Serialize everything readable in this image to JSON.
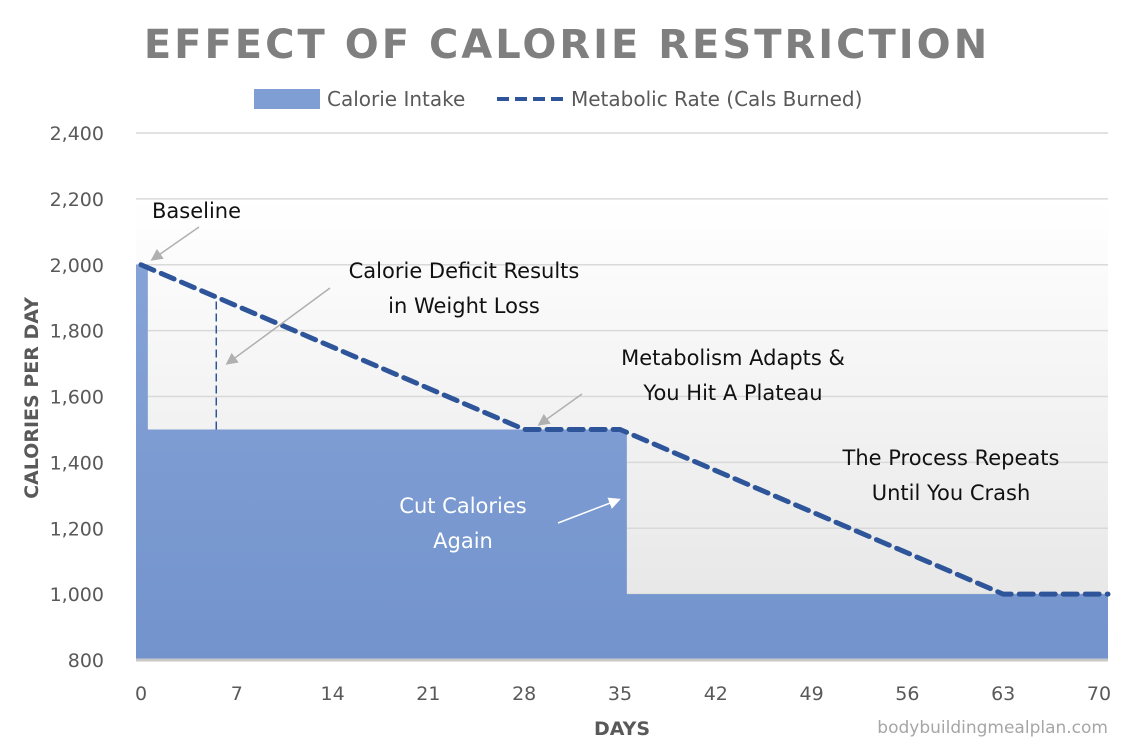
{
  "chart_data": {
    "type": "area",
    "title": "EFFECT OF CALORIE RESTRICTION",
    "xlabel": "DAYS",
    "ylabel": "CALORIES PER DAY",
    "xlim": [
      0,
      70
    ],
    "ylim": [
      800,
      2400
    ],
    "x_ticks": [
      "0",
      "7",
      "14",
      "21",
      "28",
      "35",
      "42",
      "49",
      "56",
      "63",
      "70"
    ],
    "y_ticks": [
      "800",
      "1,000",
      "1,200",
      "1,400",
      "1,600",
      "1,800",
      "2,000",
      "2,200",
      "2,400"
    ],
    "grid": true,
    "legend_position": "top",
    "series": [
      {
        "name": "Calorie Intake",
        "type": "area",
        "color": "#7f9fd4",
        "points": [
          [
            0,
            2000
          ],
          [
            0.5,
            2000
          ],
          [
            0.5,
            1500
          ],
          [
            35.5,
            1500
          ],
          [
            35.5,
            1000
          ],
          [
            70,
            1000
          ]
        ]
      },
      {
        "name": "Metabolic Rate (Cals Burned)",
        "type": "dashed-line",
        "color": "#2e559a",
        "points": [
          [
            0,
            2000
          ],
          [
            28,
            1500
          ],
          [
            35,
            1500
          ],
          [
            63,
            1000
          ],
          [
            70,
            1000
          ]
        ]
      }
    ],
    "deficit_marker": {
      "x": 5.5,
      "from": 1500,
      "to": 1902
    },
    "annotations": [
      "Baseline",
      "Calorie Deficit Results",
      "in Weight Loss",
      "Metabolism Adapts &",
      "You Hit A Plateau",
      "The Process Repeats",
      "Until You Crash",
      "Cut Calories",
      "Again"
    ]
  },
  "watermark": "bodybuildingmealplan.com"
}
